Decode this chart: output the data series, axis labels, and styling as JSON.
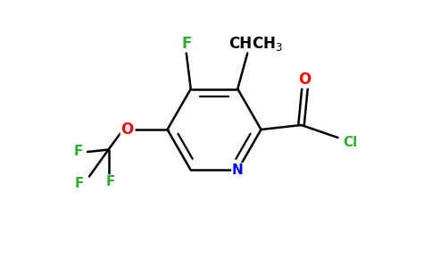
{
  "background_color": "#ffffff",
  "bond_color": "#000000",
  "atom_colors": {
    "F": "#33aa33",
    "O": "#ff0000",
    "N": "#0000ff",
    "Cl": "#33aa33",
    "C": "#000000",
    "H": "#000000"
  },
  "figsize": [
    4.84,
    3.0
  ],
  "dpi": 100,
  "xlim": [
    0,
    9.68
  ],
  "ylim": [
    0,
    6.0
  ]
}
